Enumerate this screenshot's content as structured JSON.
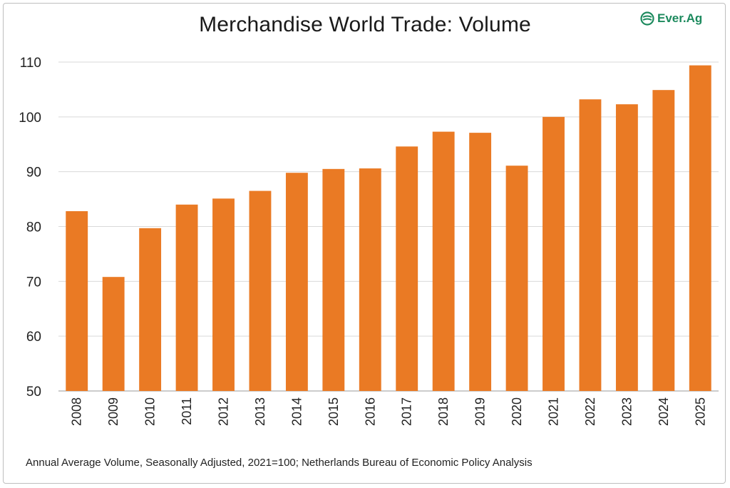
{
  "title": "Merchandise World Trade: Volume",
  "logo": {
    "text": "Ever.Ag",
    "icon": "ever-ag-logo-icon",
    "color": "#1d8a5e"
  },
  "source": "Annual Average Volume, Seasonally Adjusted, 2021=100;  Netherlands Bureau of Economic Policy Analysis",
  "chart_data": {
    "type": "bar",
    "title": "Merchandise World Trade: Volume",
    "xlabel": "",
    "ylabel": "",
    "categories": [
      "2008",
      "2009",
      "2010",
      "2011",
      "2012",
      "2013",
      "2014",
      "2015",
      "2016",
      "2017",
      "2018",
      "2019",
      "2020",
      "2021",
      "2022",
      "2023",
      "2024",
      "2025"
    ],
    "values": [
      82.8,
      70.8,
      79.7,
      84.0,
      85.1,
      86.5,
      89.8,
      90.5,
      90.6,
      94.6,
      97.3,
      97.1,
      91.1,
      100.0,
      103.2,
      102.3,
      104.9,
      109.4
    ],
    "ylim": [
      50,
      110
    ],
    "yticks": [
      50,
      60,
      70,
      80,
      90,
      100,
      110
    ],
    "bar_color": "#ea7a24",
    "grid": true,
    "legend": "none"
  }
}
